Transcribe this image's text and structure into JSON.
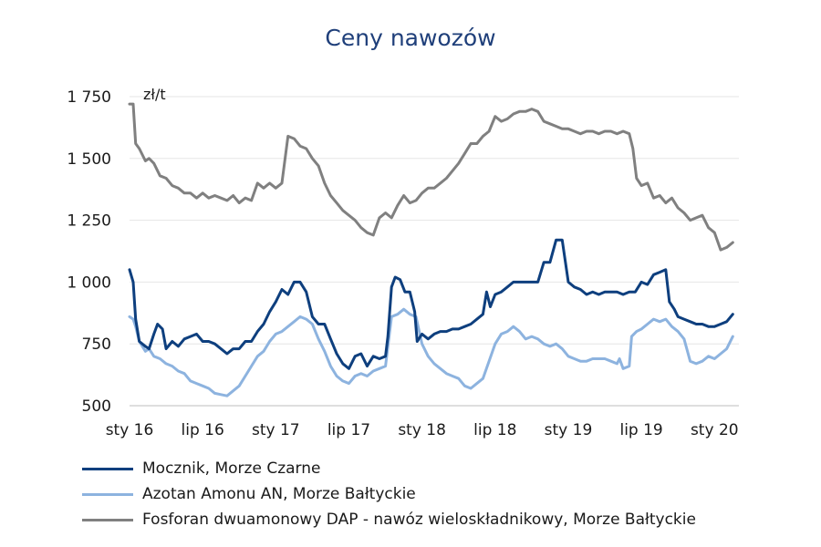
{
  "chart_data": {
    "type": "line",
    "title": "Ceny nawozów",
    "unit": "zł/t",
    "xlabel": "",
    "ylabel": "",
    "ylim": [
      500,
      1750
    ],
    "yticks": [
      500,
      750,
      1000,
      1250,
      1500,
      1750
    ],
    "ytick_labels": [
      "500",
      "750",
      "1 000",
      "1 250",
      "1 500",
      "1 750"
    ],
    "xlim": [
      0,
      50
    ],
    "xticks": [
      0,
      6,
      12,
      18,
      24,
      30,
      36,
      42,
      48
    ],
    "xtick_labels": [
      "sty 16",
      "lip 16",
      "sty 17",
      "lip 17",
      "sty 18",
      "lip 18",
      "sty 19",
      "lip 19",
      "sty 20"
    ],
    "x_unit_note": "months from sty 16",
    "grid": "horizontal",
    "legend_position": "bottom",
    "series": [
      {
        "name": "Mocznik, Morze Czarne",
        "color": "#0e3f7e",
        "points": [
          [
            0,
            1050
          ],
          [
            0.3,
            1000
          ],
          [
            0.5,
            850
          ],
          [
            0.8,
            760
          ],
          [
            1.3,
            740
          ],
          [
            1.6,
            730
          ],
          [
            2,
            790
          ],
          [
            2.3,
            830
          ],
          [
            2.7,
            810
          ],
          [
            3,
            730
          ],
          [
            3.5,
            760
          ],
          [
            4,
            740
          ],
          [
            4.5,
            770
          ],
          [
            5,
            780
          ],
          [
            5.5,
            790
          ],
          [
            6,
            760
          ],
          [
            6.5,
            760
          ],
          [
            7,
            750
          ],
          [
            7.5,
            730
          ],
          [
            8,
            710
          ],
          [
            8.5,
            730
          ],
          [
            9,
            730
          ],
          [
            9.5,
            760
          ],
          [
            10,
            760
          ],
          [
            10.5,
            800
          ],
          [
            11,
            830
          ],
          [
            11.5,
            880
          ],
          [
            12,
            920
          ],
          [
            12.5,
            970
          ],
          [
            13,
            950
          ],
          [
            13.5,
            1000
          ],
          [
            14,
            1000
          ],
          [
            14.5,
            960
          ],
          [
            15,
            860
          ],
          [
            15.5,
            830
          ],
          [
            16,
            830
          ],
          [
            16.5,
            770
          ],
          [
            17,
            710
          ],
          [
            17.5,
            670
          ],
          [
            18,
            650
          ],
          [
            18.5,
            700
          ],
          [
            19,
            710
          ],
          [
            19.5,
            660
          ],
          [
            20,
            700
          ],
          [
            20.5,
            690
          ],
          [
            21,
            700
          ],
          [
            21.2,
            780
          ],
          [
            21.5,
            980
          ],
          [
            21.8,
            1020
          ],
          [
            22.2,
            1010
          ],
          [
            22.6,
            960
          ],
          [
            23,
            960
          ],
          [
            23.4,
            880
          ],
          [
            23.6,
            760
          ],
          [
            24,
            790
          ],
          [
            24.5,
            770
          ],
          [
            25,
            790
          ],
          [
            25.5,
            800
          ],
          [
            26,
            800
          ],
          [
            26.5,
            810
          ],
          [
            27,
            810
          ],
          [
            27.5,
            820
          ],
          [
            28,
            830
          ],
          [
            28.5,
            850
          ],
          [
            29,
            870
          ],
          [
            29.3,
            960
          ],
          [
            29.6,
            900
          ],
          [
            30,
            950
          ],
          [
            30.5,
            960
          ],
          [
            31,
            980
          ],
          [
            31.5,
            1000
          ],
          [
            32,
            1000
          ],
          [
            33,
            1000
          ],
          [
            33.5,
            1000
          ],
          [
            34,
            1080
          ],
          [
            34.5,
            1080
          ],
          [
            35,
            1170
          ],
          [
            35.5,
            1170
          ],
          [
            36,
            1000
          ],
          [
            36.5,
            980
          ],
          [
            37,
            970
          ],
          [
            37.5,
            950
          ],
          [
            38,
            960
          ],
          [
            38.5,
            950
          ],
          [
            39,
            960
          ],
          [
            39.5,
            960
          ],
          [
            40,
            960
          ],
          [
            40.5,
            950
          ],
          [
            41,
            960
          ],
          [
            41.5,
            960
          ],
          [
            42,
            1000
          ],
          [
            42.5,
            990
          ],
          [
            43,
            1030
          ],
          [
            43.5,
            1040
          ],
          [
            44,
            1050
          ],
          [
            44.3,
            920
          ],
          [
            44.7,
            890
          ],
          [
            45,
            860
          ],
          [
            45.5,
            850
          ],
          [
            46,
            840
          ],
          [
            46.5,
            830
          ],
          [
            47,
            830
          ],
          [
            47.5,
            820
          ],
          [
            48,
            820
          ],
          [
            48.5,
            830
          ],
          [
            49,
            840
          ],
          [
            49.5,
            870
          ]
        ]
      },
      {
        "name": "Azotan Amonu AN, Morze Bałtyckie",
        "color": "#8db3df",
        "points": [
          [
            0,
            860
          ],
          [
            0.3,
            850
          ],
          [
            0.5,
            820
          ],
          [
            0.8,
            760
          ],
          [
            1.3,
            720
          ],
          [
            1.6,
            730
          ],
          [
            2,
            700
          ],
          [
            2.5,
            690
          ],
          [
            3,
            670
          ],
          [
            3.5,
            660
          ],
          [
            4,
            640
          ],
          [
            4.5,
            630
          ],
          [
            5,
            600
          ],
          [
            5.5,
            590
          ],
          [
            6,
            580
          ],
          [
            6.5,
            570
          ],
          [
            7,
            550
          ],
          [
            7.5,
            545
          ],
          [
            8,
            540
          ],
          [
            8.5,
            560
          ],
          [
            9,
            580
          ],
          [
            9.5,
            620
          ],
          [
            10,
            660
          ],
          [
            10.5,
            700
          ],
          [
            11,
            720
          ],
          [
            11.5,
            760
          ],
          [
            12,
            790
          ],
          [
            12.5,
            800
          ],
          [
            13,
            820
          ],
          [
            13.5,
            840
          ],
          [
            14,
            860
          ],
          [
            14.5,
            850
          ],
          [
            15,
            830
          ],
          [
            15.5,
            770
          ],
          [
            16,
            720
          ],
          [
            16.5,
            660
          ],
          [
            17,
            620
          ],
          [
            17.5,
            600
          ],
          [
            18,
            590
          ],
          [
            18.5,
            620
          ],
          [
            19,
            630
          ],
          [
            19.5,
            620
          ],
          [
            20,
            640
          ],
          [
            20.5,
            650
          ],
          [
            21,
            660
          ],
          [
            21.5,
            860
          ],
          [
            22,
            870
          ],
          [
            22.5,
            890
          ],
          [
            23,
            870
          ],
          [
            23.5,
            860
          ],
          [
            24,
            750
          ],
          [
            24.5,
            700
          ],
          [
            25,
            670
          ],
          [
            25.5,
            650
          ],
          [
            26,
            630
          ],
          [
            26.5,
            620
          ],
          [
            27,
            610
          ],
          [
            27.5,
            580
          ],
          [
            28,
            570
          ],
          [
            28.5,
            590
          ],
          [
            29,
            610
          ],
          [
            29.5,
            680
          ],
          [
            30,
            750
          ],
          [
            30.5,
            790
          ],
          [
            31,
            800
          ],
          [
            31.5,
            820
          ],
          [
            32,
            800
          ],
          [
            32.5,
            770
          ],
          [
            33,
            780
          ],
          [
            33.5,
            770
          ],
          [
            34,
            750
          ],
          [
            34.5,
            740
          ],
          [
            35,
            750
          ],
          [
            35.5,
            730
          ],
          [
            36,
            700
          ],
          [
            36.5,
            690
          ],
          [
            37,
            680
          ],
          [
            37.5,
            680
          ],
          [
            38,
            690
          ],
          [
            38.5,
            690
          ],
          [
            39,
            690
          ],
          [
            39.5,
            680
          ],
          [
            40,
            670
          ],
          [
            40.2,
            690
          ],
          [
            40.5,
            650
          ],
          [
            41,
            660
          ],
          [
            41.2,
            780
          ],
          [
            41.6,
            800
          ],
          [
            42,
            810
          ],
          [
            42.5,
            830
          ],
          [
            43,
            850
          ],
          [
            43.5,
            840
          ],
          [
            44,
            850
          ],
          [
            44.5,
            820
          ],
          [
            45,
            800
          ],
          [
            45.5,
            770
          ],
          [
            46,
            680
          ],
          [
            46.5,
            670
          ],
          [
            47,
            680
          ],
          [
            47.5,
            700
          ],
          [
            48,
            690
          ],
          [
            48.5,
            710
          ],
          [
            49,
            730
          ],
          [
            49.5,
            780
          ]
        ]
      },
      {
        "name": "Fosforan dwuamonowy DAP - nawóz wieloskładnikowy, Morze Bałtyckie",
        "color": "#808080",
        "points": [
          [
            0,
            1720
          ],
          [
            0.3,
            1720
          ],
          [
            0.5,
            1560
          ],
          [
            0.8,
            1540
          ],
          [
            1.3,
            1490
          ],
          [
            1.6,
            1500
          ],
          [
            2,
            1480
          ],
          [
            2.5,
            1430
          ],
          [
            3,
            1420
          ],
          [
            3.5,
            1390
          ],
          [
            4,
            1380
          ],
          [
            4.5,
            1360
          ],
          [
            5,
            1360
          ],
          [
            5.5,
            1340
          ],
          [
            6,
            1360
          ],
          [
            6.5,
            1340
          ],
          [
            7,
            1350
          ],
          [
            7.5,
            1340
          ],
          [
            8,
            1330
          ],
          [
            8.5,
            1350
          ],
          [
            9,
            1320
          ],
          [
            9.5,
            1340
          ],
          [
            10,
            1330
          ],
          [
            10.5,
            1400
          ],
          [
            11,
            1380
          ],
          [
            11.5,
            1400
          ],
          [
            12,
            1380
          ],
          [
            12.5,
            1400
          ],
          [
            13,
            1590
          ],
          [
            13.5,
            1580
          ],
          [
            14,
            1550
          ],
          [
            14.5,
            1540
          ],
          [
            15,
            1500
          ],
          [
            15.5,
            1470
          ],
          [
            16,
            1400
          ],
          [
            16.5,
            1350
          ],
          [
            17,
            1320
          ],
          [
            17.5,
            1290
          ],
          [
            18,
            1270
          ],
          [
            18.5,
            1250
          ],
          [
            19,
            1220
          ],
          [
            19.5,
            1200
          ],
          [
            20,
            1190
          ],
          [
            20.5,
            1260
          ],
          [
            21,
            1280
          ],
          [
            21.5,
            1260
          ],
          [
            22,
            1310
          ],
          [
            22.5,
            1350
          ],
          [
            23,
            1320
          ],
          [
            23.5,
            1330
          ],
          [
            24,
            1360
          ],
          [
            24.5,
            1380
          ],
          [
            25,
            1380
          ],
          [
            25.5,
            1400
          ],
          [
            26,
            1420
          ],
          [
            26.5,
            1450
          ],
          [
            27,
            1480
          ],
          [
            27.5,
            1520
          ],
          [
            28,
            1560
          ],
          [
            28.5,
            1560
          ],
          [
            29,
            1590
          ],
          [
            29.5,
            1610
          ],
          [
            30,
            1670
          ],
          [
            30.5,
            1650
          ],
          [
            31,
            1660
          ],
          [
            31.5,
            1680
          ],
          [
            32,
            1690
          ],
          [
            32.5,
            1690
          ],
          [
            33,
            1700
          ],
          [
            33.5,
            1690
          ],
          [
            34,
            1650
          ],
          [
            34.5,
            1640
          ],
          [
            35,
            1630
          ],
          [
            35.5,
            1620
          ],
          [
            36,
            1620
          ],
          [
            36.5,
            1610
          ],
          [
            37,
            1600
          ],
          [
            37.5,
            1610
          ],
          [
            38,
            1610
          ],
          [
            38.5,
            1600
          ],
          [
            39,
            1610
          ],
          [
            39.5,
            1610
          ],
          [
            40,
            1600
          ],
          [
            40.5,
            1610
          ],
          [
            41,
            1600
          ],
          [
            41.3,
            1540
          ],
          [
            41.6,
            1420
          ],
          [
            42,
            1390
          ],
          [
            42.5,
            1400
          ],
          [
            43,
            1340
          ],
          [
            43.5,
            1350
          ],
          [
            44,
            1320
          ],
          [
            44.5,
            1340
          ],
          [
            45,
            1300
          ],
          [
            45.5,
            1280
          ],
          [
            46,
            1250
          ],
          [
            46.5,
            1260
          ],
          [
            47,
            1270
          ],
          [
            47.5,
            1220
          ],
          [
            48,
            1200
          ],
          [
            48.5,
            1130
          ],
          [
            49,
            1140
          ],
          [
            49.5,
            1160
          ]
        ]
      }
    ]
  }
}
